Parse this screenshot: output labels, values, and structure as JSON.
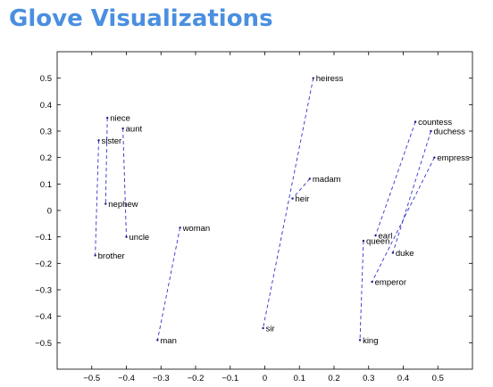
{
  "slide": {
    "title": "Glove Visualizations"
  },
  "chart_data": {
    "type": "scatter",
    "title": "",
    "xlabel": "",
    "ylabel": "",
    "xlim": [
      -0.6,
      0.6
    ],
    "ylim": [
      -0.6,
      0.6
    ],
    "xticks": [
      -0.5,
      -0.4,
      -0.3,
      -0.2,
      -0.1,
      0,
      0.1,
      0.2,
      0.3,
      0.4,
      0.5
    ],
    "yticks": [
      -0.5,
      -0.4,
      -0.3,
      -0.2,
      -0.1,
      0,
      0.1,
      0.2,
      0.3,
      0.4,
      0.5
    ],
    "xtick_labels": [
      "−0.5",
      "−0.4",
      "−0.3",
      "−0.2",
      "−0.1",
      "0",
      "0.1",
      "0.2",
      "0.3",
      "0.4",
      "0.5"
    ],
    "ytick_labels": [
      "−0.5",
      "−0.4",
      "−0.3",
      "−0.2",
      "−0.1",
      "0",
      "0.1",
      "0.2",
      "0.3",
      "0.4",
      "0.5"
    ],
    "grid": false,
    "line_color": "#3333cc",
    "point_color": "#1a1a80",
    "points": [
      {
        "word": "niece",
        "x": -0.455,
        "y": 0.35
      },
      {
        "word": "aunt",
        "x": -0.41,
        "y": 0.31
      },
      {
        "word": "sister",
        "x": -0.48,
        "y": 0.265
      },
      {
        "word": "nephew",
        "x": -0.46,
        "y": 0.025
      },
      {
        "word": "uncle",
        "x": -0.4,
        "y": -0.1
      },
      {
        "word": "brother",
        "x": -0.49,
        "y": -0.17
      },
      {
        "word": "woman",
        "x": -0.245,
        "y": -0.065
      },
      {
        "word": "man",
        "x": -0.31,
        "y": -0.49
      },
      {
        "word": "heiress",
        "x": 0.14,
        "y": 0.5
      },
      {
        "word": "madam",
        "x": 0.13,
        "y": 0.12
      },
      {
        "word": "heir",
        "x": 0.08,
        "y": 0.045
      },
      {
        "word": "sir",
        "x": -0.005,
        "y": -0.445
      },
      {
        "word": "countess",
        "x": 0.435,
        "y": 0.335
      },
      {
        "word": "duchess",
        "x": 0.48,
        "y": 0.3
      },
      {
        "word": "empress",
        "x": 0.49,
        "y": 0.2
      },
      {
        "word": "earl",
        "x": 0.32,
        "y": -0.095
      },
      {
        "word": "queen",
        "x": 0.285,
        "y": -0.115
      },
      {
        "word": "duke",
        "x": 0.37,
        "y": -0.16
      },
      {
        "word": "emperor",
        "x": 0.31,
        "y": -0.27
      },
      {
        "word": "king",
        "x": 0.275,
        "y": -0.49
      }
    ],
    "pairs": [
      [
        "niece",
        "nephew"
      ],
      [
        "aunt",
        "uncle"
      ],
      [
        "sister",
        "brother"
      ],
      [
        "woman",
        "man"
      ],
      [
        "heiress",
        "sir"
      ],
      [
        "madam",
        "heir"
      ],
      [
        "countess",
        "earl"
      ],
      [
        "duchess",
        "duke"
      ],
      [
        "empress",
        "emperor"
      ],
      [
        "queen",
        "king"
      ]
    ]
  }
}
